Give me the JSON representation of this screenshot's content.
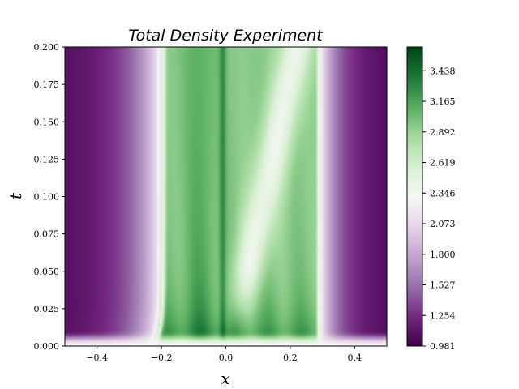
{
  "chart_data": {
    "type": "heatmap",
    "title": "Total Density Experiment",
    "xlabel": "x",
    "ylabel": "t",
    "xlim": [
      -0.5,
      0.5
    ],
    "ylim": [
      0.0,
      0.2
    ],
    "x_ticks": [
      -0.4,
      -0.2,
      0.0,
      0.2,
      0.4
    ],
    "x_tick_labels": [
      "−0.4",
      "−0.2",
      "0.0",
      "0.2",
      "0.4"
    ],
    "y_ticks": [
      0.0,
      0.025,
      0.05,
      0.075,
      0.1,
      0.125,
      0.15,
      0.175,
      0.2
    ],
    "y_tick_labels": [
      "0.000",
      "0.025",
      "0.050",
      "0.075",
      "0.100",
      "0.125",
      "0.150",
      "0.175",
      "0.200"
    ],
    "colormap": "PRGn",
    "colorbar": {
      "min": 0.981,
      "max": 3.65,
      "ticks": [
        0.981,
        1.254,
        1.527,
        1.8,
        2.073,
        2.346,
        2.619,
        2.892,
        3.165,
        3.438
      ],
      "tick_labels": [
        "0.981",
        "1.254",
        "1.527",
        "1.800",
        "2.073",
        "2.346",
        "2.619",
        "2.892",
        "3.165",
        "3.438"
      ]
    },
    "grid": false,
    "legend": "none"
  }
}
